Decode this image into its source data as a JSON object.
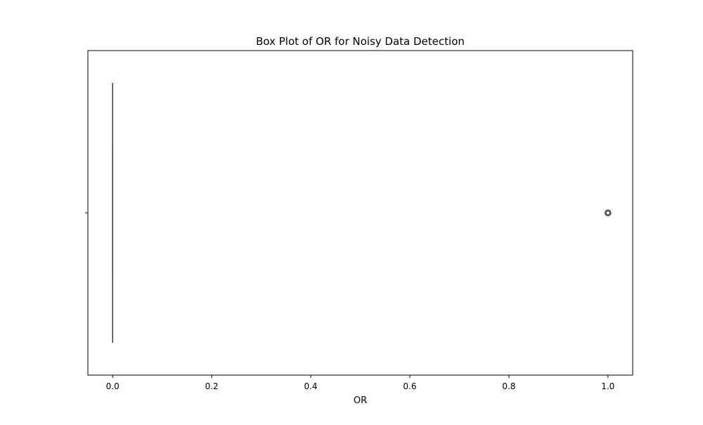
{
  "chart_data": {
    "type": "box",
    "orientation": "horizontal",
    "title": "Box Plot of OR for Noisy Data Detection",
    "xlabel": "OR",
    "ylabel": "",
    "xlim": [
      -0.05,
      1.05
    ],
    "xticks": [
      0.0,
      0.2,
      0.4,
      0.6,
      0.8,
      1.0
    ],
    "xtick_labels": [
      "0.0",
      "0.2",
      "0.4",
      "0.6",
      "0.8",
      "1.0"
    ],
    "grid": false,
    "box": {
      "whisker_low": 0.0,
      "q1": 0.0,
      "median": 0.0,
      "q3": 0.0,
      "whisker_high": 0.0,
      "outliers": [
        1.0
      ],
      "color": "#3d3d3d"
    }
  }
}
